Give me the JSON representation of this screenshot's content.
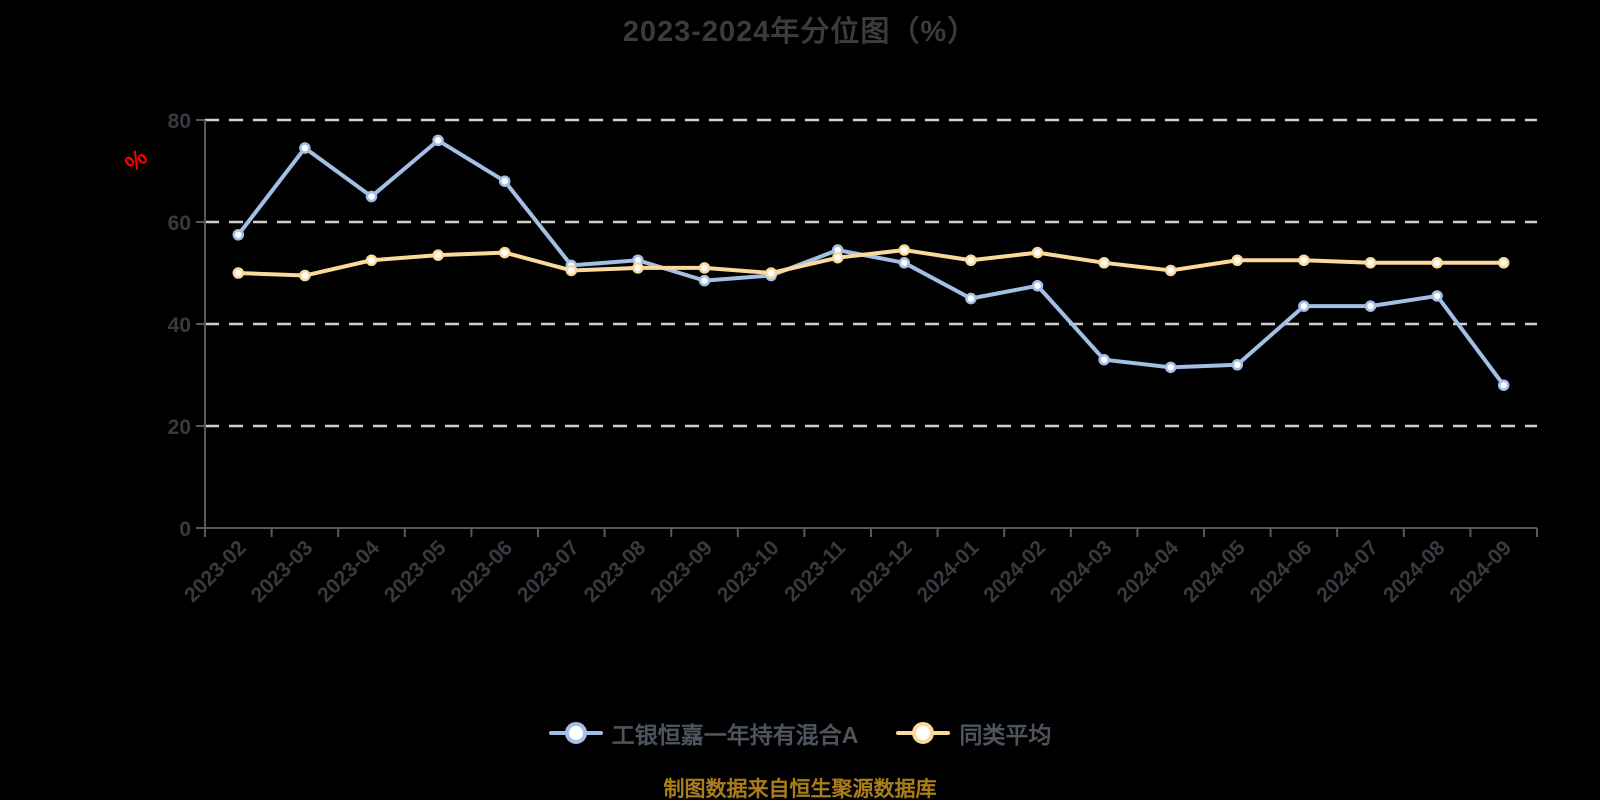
{
  "styles": {
    "background": "#000000",
    "title_color": "#3b3b3b",
    "axis_label_color": "#373b40",
    "axis_line_color": "#55585e",
    "grid_color": "#cfcfcf",
    "y_name_color": "#ff0000",
    "legend_text_color": "#4d545d",
    "caption_color": "#a97d1a",
    "marker_fill": "#ffffff"
  },
  "chart_data": {
    "type": "line",
    "title": "2023-2024年分位图（%）",
    "caption": "制图数据来自恒生聚源数据库",
    "xlabel": "",
    "ylabel": "%",
    "ylim": [
      0,
      80
    ],
    "yticks": [
      0,
      20,
      40,
      60,
      80
    ],
    "grid": "horizontal-dashed",
    "legend_position": "bottom",
    "categories": [
      "2023-02",
      "2023-03",
      "2023-04",
      "2023-05",
      "2023-06",
      "2023-07",
      "2023-08",
      "2023-09",
      "2023-10",
      "2023-11",
      "2023-12",
      "2024-01",
      "2024-02",
      "2024-03",
      "2024-04",
      "2024-05",
      "2024-06",
      "2024-07",
      "2024-08",
      "2024-09"
    ],
    "series": [
      {
        "name": "工银恒嘉一年持有混合A",
        "color": "#a3bfe6",
        "values": [
          57.5,
          74.5,
          65,
          76,
          68,
          51.5,
          52.5,
          48.5,
          49.5,
          54.5,
          52,
          45,
          47.5,
          33,
          31.5,
          32,
          43.5,
          43.5,
          45.5,
          28
        ]
      },
      {
        "name": "同类平均",
        "color": "#fad99b",
        "values": [
          50,
          49.5,
          52.5,
          53.5,
          54,
          50.5,
          51,
          51,
          50,
          53,
          54.5,
          52.5,
          54,
          52,
          50.5,
          52.5,
          52.5,
          52,
          52,
          52
        ]
      }
    ]
  }
}
